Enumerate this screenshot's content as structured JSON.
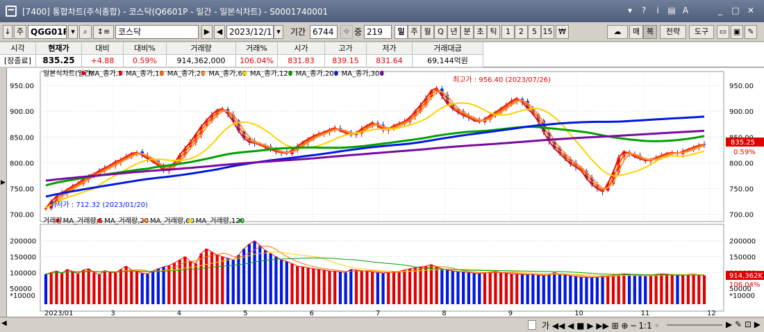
{
  "window": {
    "title": "[7400] 통합차트(주식종합) - 코스닥(Q6601P - 일간 - 일본식차트) - S0001740001",
    "controls": [
      "▾",
      "?",
      "i",
      "▤",
      "A",
      "_",
      "□",
      "✕"
    ]
  },
  "toolbar": {
    "code": "QGG01P",
    "name": "코스닥",
    "date": "2023/12/11",
    "period_label": "기간",
    "period_value": "6744",
    "count_label": "중",
    "count_value": "219",
    "period_buttons": [
      "일",
      "주",
      "월",
      "Q",
      "년",
      "분",
      "초",
      "틱",
      "1",
      "2",
      "5",
      "15",
      "₩"
    ],
    "right_buttons": [
      "매",
      "복",
      "전략",
      "도구"
    ]
  },
  "quote": {
    "headers": [
      "시각",
      "현재가",
      "대비",
      "대비%",
      "거래량",
      "거래%",
      "시가",
      "고가",
      "저가",
      "거래대금"
    ],
    "values": [
      "[장종료]",
      "835.25",
      "+4.88",
      "0.59%",
      "914,362,000",
      "106.04%",
      "831.83",
      "839.15",
      "831.64",
      "69,144억원"
    ]
  },
  "chart_data": [
    {
      "type": "candlestick",
      "name": "일본식차트(일간)",
      "legend": [
        "일본식차트(일간)",
        "MA_종가,5",
        "MA_종가,10",
        "MA_종가,20",
        "MA_종가,60",
        "MA_종가,120",
        "MA_종가,200",
        "MA_종가,306"
      ],
      "legend_colors": [
        "#d00000",
        "#e8120c",
        "#ff6a00",
        "#ff9040",
        "#ffd000",
        "#00a000",
        "#0018e0",
        "#7a0aa0"
      ],
      "x_labels": [
        "2023/01",
        "3",
        "4",
        "5",
        "6",
        "7",
        "8",
        "9",
        "10",
        "11",
        "12"
      ],
      "y_ticks": [
        "950.00",
        "900.00",
        "850.00",
        "800.00",
        "750.00",
        "700.00"
      ],
      "ylim": [
        690,
        965
      ],
      "close": [
        712,
        725,
        735,
        742,
        748,
        755,
        760,
        768,
        775,
        778,
        785,
        790,
        795,
        802,
        806,
        812,
        818,
        820,
        815,
        808,
        802,
        795,
        785,
        790,
        800,
        815,
        828,
        840,
        855,
        870,
        882,
        893,
        902,
        905,
        895,
        880,
        862,
        848,
        840,
        838,
        835,
        830,
        826,
        822,
        820,
        818,
        825,
        832,
        840,
        846,
        852,
        856,
        860,
        864,
        868,
        862,
        858,
        855,
        858,
        866,
        872,
        878,
        872,
        864,
        866,
        872,
        876,
        880,
        888,
        900,
        912,
        925,
        940,
        945,
        930,
        915,
        905,
        898,
        892,
        888,
        882,
        880,
        885,
        892,
        898,
        905,
        912,
        920,
        925,
        918,
        905,
        895,
        880,
        860,
        842,
        828,
        818,
        808,
        798,
        792,
        785,
        770,
        758,
        750,
        744,
        760,
        782,
        810,
        822,
        818,
        812,
        808,
        804,
        806,
        810,
        814,
        818,
        820,
        818,
        822,
        826,
        830,
        834,
        835
      ],
      "annotations": {
        "max_label": "최고가 : 956.40 (2023/07/26)",
        "min_label": "최저가 : 712.32 (2023/01/20)"
      },
      "last_price": "835.25",
      "last_pct": "0.59%"
    },
    {
      "type": "bar",
      "name": "거래량",
      "legend": [
        "거래량",
        "MA_거래량,5",
        "MA_거래량,20",
        "MA_거래량,60",
        "MA_거래량,120"
      ],
      "legend_colors": [
        "#d00000",
        "#e8120c",
        "#ff6a00",
        "#ffd000",
        "#00a000"
      ],
      "y_ticks": [
        "200000",
        "150000",
        "100000",
        "50000"
      ],
      "ylim": [
        0,
        230000
      ],
      "values": [
        95,
        100,
        105,
        98,
        110,
        104,
        96,
        108,
        112,
        100,
        94,
        106,
        101,
        99,
        110,
        120,
        108,
        104,
        98,
        96,
        105,
        112,
        118,
        122,
        130,
        140,
        150,
        135,
        128,
        160,
        175,
        165,
        155,
        150,
        145,
        140,
        155,
        175,
        190,
        200,
        185,
        170,
        160,
        150,
        140,
        135,
        128,
        120,
        118,
        115,
        112,
        110,
        108,
        105,
        104,
        102,
        100,
        110,
        108,
        106,
        104,
        102,
        100,
        98,
        100,
        102,
        104,
        108,
        112,
        115,
        118,
        120,
        125,
        118,
        112,
        108,
        105,
        103,
        102,
        100,
        98,
        97,
        99,
        101,
        103,
        100,
        98,
        96,
        95,
        94,
        93,
        95,
        92,
        90,
        94,
        100,
        95,
        92,
        90,
        88,
        86,
        85,
        84,
        86,
        88,
        90,
        92,
        94,
        96,
        95,
        93,
        91,
        90,
        92,
        94,
        96,
        95,
        93,
        91,
        92,
        94,
        95,
        93,
        91
      ],
      "unit_note": "*10000",
      "last_label": "914,362K",
      "last_pct": "106.04%"
    }
  ]
}
